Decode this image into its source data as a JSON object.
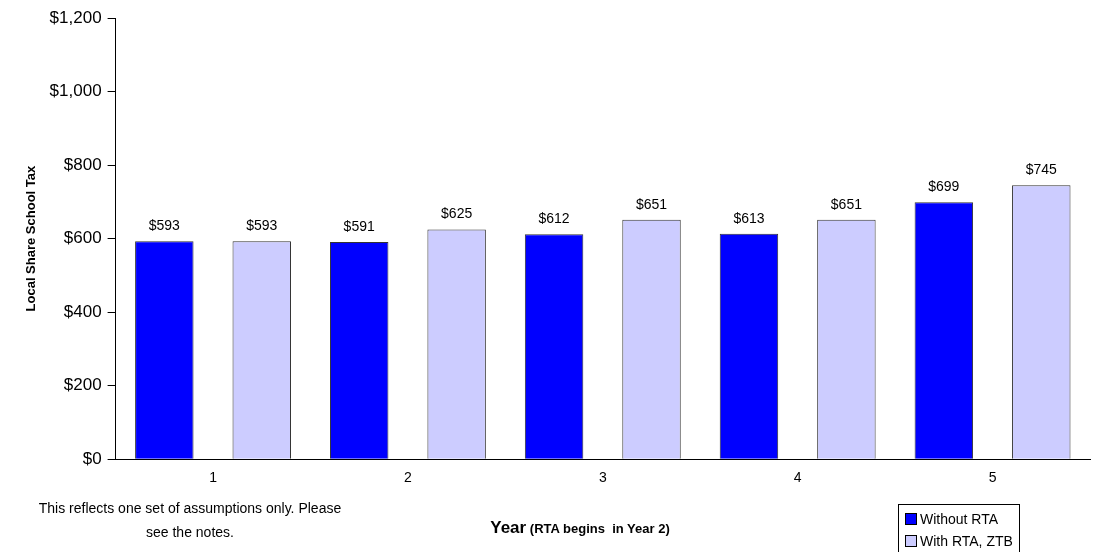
{
  "chart_data": {
    "type": "bar",
    "xlabel": "Year (RTA begins  in Year 2)",
    "ylabel": "Local Share School Tax",
    "categories": [
      "1",
      "2",
      "3",
      "4",
      "5"
    ],
    "series": [
      {
        "name": "Without RTA",
        "color": "#0000ff",
        "values": [
          593,
          591,
          612,
          613,
          699
        ],
        "value_labels": [
          "$593",
          "$591",
          "$612",
          "$613",
          "$699"
        ]
      },
      {
        "name": "With RTA, ZTB",
        "color": "#ccccff",
        "values": [
          593,
          625,
          651,
          651,
          745
        ],
        "value_labels": [
          "$593",
          "$625",
          "$651",
          "$651",
          "$745"
        ]
      }
    ],
    "ylim": [
      0,
      1200
    ],
    "yticks": [
      {
        "value": 0,
        "label": "$0"
      },
      {
        "value": 200,
        "label": "$200"
      },
      {
        "value": 400,
        "label": "$400"
      },
      {
        "value": 600,
        "label": "$600"
      },
      {
        "value": 800,
        "label": "$800"
      },
      {
        "value": 1000,
        "label": "$1,000"
      },
      {
        "value": 1200,
        "label": "$1,200"
      }
    ],
    "grid": false,
    "legend": "bottom right",
    "annotations": [
      "This reflects one set of assumptions only. Please see the notes."
    ]
  }
}
